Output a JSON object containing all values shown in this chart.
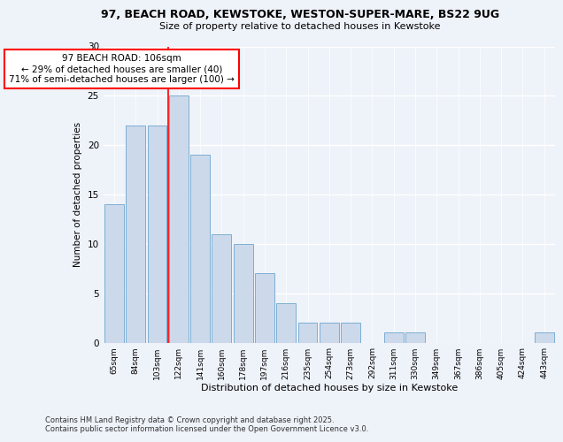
{
  "title1": "97, BEACH ROAD, KEWSTOKE, WESTON-SUPER-MARE, BS22 9UG",
  "title2": "Size of property relative to detached houses in Kewstoke",
  "xlabel": "Distribution of detached houses by size in Kewstoke",
  "ylabel": "Number of detached properties",
  "categories": [
    "65sqm",
    "84sqm",
    "103sqm",
    "122sqm",
    "141sqm",
    "160sqm",
    "178sqm",
    "197sqm",
    "216sqm",
    "235sqm",
    "254sqm",
    "273sqm",
    "292sqm",
    "311sqm",
    "330sqm",
    "349sqm",
    "367sqm",
    "386sqm",
    "405sqm",
    "424sqm",
    "443sqm"
  ],
  "values": [
    14,
    22,
    22,
    25,
    19,
    11,
    10,
    7,
    4,
    2,
    2,
    2,
    0,
    1,
    1,
    0,
    0,
    0,
    0,
    0,
    1
  ],
  "bar_color": "#ccd9eb",
  "bar_edge_color": "#7bafd4",
  "red_line_x": 2.5,
  "annotation_text": "97 BEACH ROAD: 106sqm\n← 29% of detached houses are smaller (40)\n71% of semi-detached houses are larger (100) →",
  "annotation_box_color": "white",
  "annotation_box_edge_color": "red",
  "background_color": "#eef2f9",
  "grid_color": "white",
  "ylim": [
    0,
    30
  ],
  "yticks": [
    0,
    5,
    10,
    15,
    20,
    25,
    30
  ],
  "footer1": "Contains HM Land Registry data © Crown copyright and database right 2025.",
  "footer2": "Contains public sector information licensed under the Open Government Licence v3.0."
}
